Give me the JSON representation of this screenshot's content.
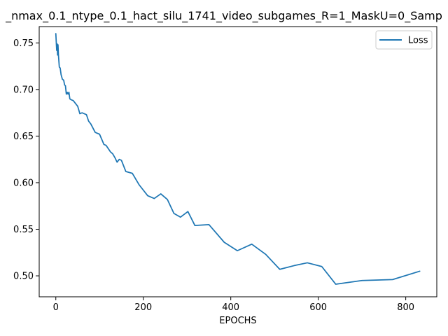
{
  "chart_data": {
    "type": "line",
    "title": "_nmax_0.1_ntype_0.1_hact_silu_1741_video_subgames_R=1_MaskU=0_Samp",
    "xlabel": "EPOCHS",
    "ylabel": "",
    "xlim": [
      -38,
      871
    ],
    "ylim": [
      0.4775,
      0.7675
    ],
    "xticks": [
      0,
      200,
      400,
      600,
      800
    ],
    "yticks": [
      0.5,
      0.55,
      0.6,
      0.65,
      0.7,
      0.75
    ],
    "xtick_labels": [
      "0",
      "200",
      "400",
      "600",
      "800"
    ],
    "ytick_labels": [
      "0.50",
      "0.55",
      "0.60",
      "0.65",
      "0.70",
      "0.75"
    ],
    "grid": false,
    "legend_loc": "upper right",
    "series": [
      {
        "name": "Loss",
        "color": "#1f77b4",
        "x": [
          0,
          2,
          3,
          4,
          5,
          6,
          8,
          10,
          12,
          15,
          18,
          20,
          22,
          24,
          26,
          28,
          30,
          32,
          35,
          40,
          45,
          50,
          55,
          60,
          65,
          70,
          75,
          80,
          90,
          95,
          100,
          110,
          115,
          125,
          130,
          135,
          140,
          145,
          150,
          160,
          175,
          190,
          210,
          225,
          240,
          255,
          270,
          285,
          302,
          318,
          350,
          385,
          415,
          448,
          480,
          512,
          545,
          575,
          608,
          640,
          700,
          770,
          832
        ],
        "y": [
          0.76,
          0.742,
          0.749,
          0.737,
          0.748,
          0.737,
          0.724,
          0.723,
          0.716,
          0.711,
          0.71,
          0.705,
          0.704,
          0.695,
          0.697,
          0.695,
          0.697,
          0.69,
          0.689,
          0.688,
          0.685,
          0.682,
          0.674,
          0.675,
          0.674,
          0.673,
          0.666,
          0.663,
          0.654,
          0.653,
          0.652,
          0.641,
          0.64,
          0.633,
          0.631,
          0.627,
          0.622,
          0.625,
          0.624,
          0.612,
          0.61,
          0.598,
          0.586,
          0.583,
          0.588,
          0.582,
          0.567,
          0.563,
          0.569,
          0.554,
          0.555,
          0.536,
          0.527,
          0.534,
          0.523,
          0.507,
          0.511,
          0.514,
          0.51,
          0.491,
          0.495,
          0.496,
          0.505
        ]
      }
    ]
  }
}
